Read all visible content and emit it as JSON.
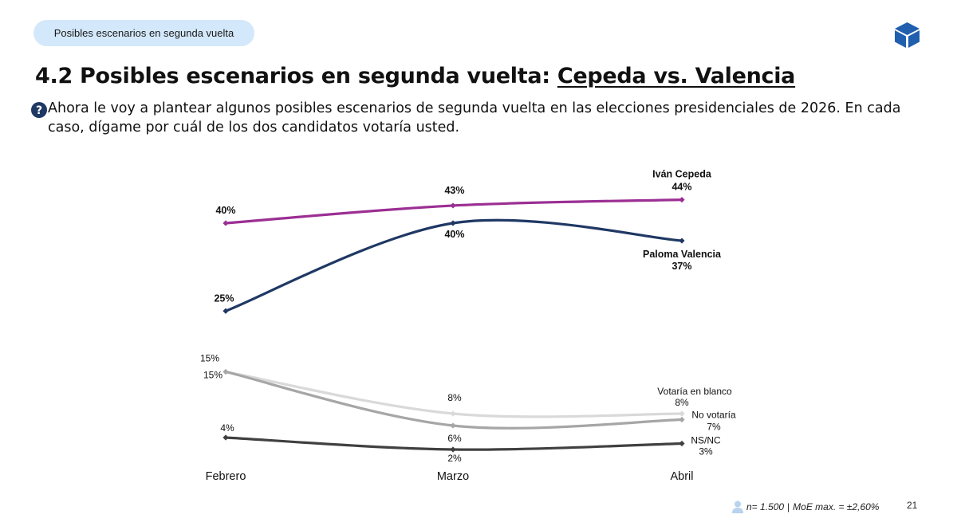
{
  "header": {
    "section_pill": "Posibles escenarios en segunda vuelta",
    "logo_icon": "cube-logo-icon"
  },
  "title": {
    "prefix": "4.2 Posibles escenarios en segunda vuelta: ",
    "highlight": "Cepeda vs. Valencia"
  },
  "question": {
    "icon": "question-icon",
    "text": "Ahora le voy a plantear algunos posibles escenarios de segunda vuelta en las elecciones presidenciales de 2026. En cada caso, dígame por cuál de los dos candidatos votaría usted."
  },
  "chart_data": {
    "type": "line",
    "categories": [
      "Febrero",
      "Marzo",
      "Abril"
    ],
    "ylim": [
      0,
      50
    ],
    "grid": false,
    "series": [
      {
        "name": "Iván Cepeda",
        "values": [
          40,
          43,
          44
        ],
        "color": "#9b2f93",
        "labels": [
          "40%",
          "43%",
          "44%"
        ]
      },
      {
        "name": "Paloma Valencia",
        "values": [
          25,
          40,
          37
        ],
        "color": "#1f3864",
        "labels": [
          "25%",
          "40%",
          "37%"
        ]
      },
      {
        "name": "Votaría en blanco",
        "values": [
          15,
          8,
          8
        ],
        "color": "#d9d9d9",
        "labels": [
          "15%",
          "8%",
          "8%"
        ]
      },
      {
        "name": "No votaría",
        "values": [
          15,
          6,
          7
        ],
        "color": "#a6a6a6",
        "labels": [
          "15%",
          "6%",
          "7%"
        ]
      },
      {
        "name": "NS/NC",
        "values": [
          4,
          2,
          3
        ],
        "color": "#404040",
        "labels": [
          "4%",
          "2%",
          "3%"
        ]
      }
    ]
  },
  "footer": {
    "person_icon": "person-icon",
    "sample": "n= 1.500",
    "separator": "|",
    "moe": "MoE max. = ±2,60%",
    "page_number": "21"
  }
}
